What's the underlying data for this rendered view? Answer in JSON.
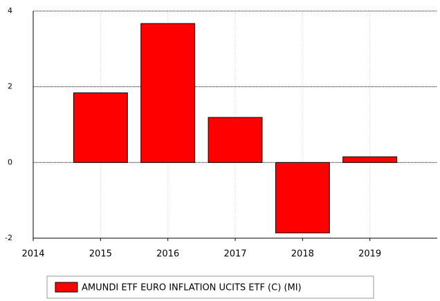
{
  "chart_data": {
    "type": "bar",
    "x": [
      2015,
      2016,
      2017,
      2018,
      2019
    ],
    "series": [
      {
        "name": "AMUNDI ETF EURO INFLATION UCITS ETF (C) (MI)",
        "color": "#ff0000",
        "values": [
          1.84,
          3.67,
          1.19,
          -1.86,
          0.15
        ]
      }
    ],
    "xlim": [
      2014,
      2020
    ],
    "xticks": [
      2014,
      2015,
      2016,
      2017,
      2018,
      2019
    ],
    "ylim": [
      -2,
      4
    ],
    "yticks": [
      -2,
      0,
      2,
      4
    ],
    "grid": true,
    "legend": "bottom"
  }
}
